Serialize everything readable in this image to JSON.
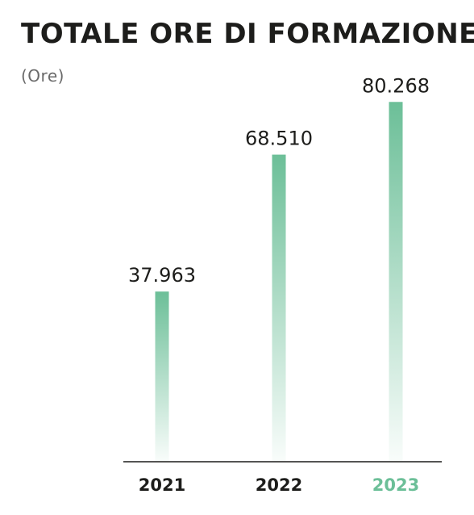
{
  "header": {
    "title": "TOTALE ORE DI FORMAZIONE",
    "unit": "(Ore)"
  },
  "colors": {
    "bar": "#6cbf98",
    "highlight": "#6cbf98",
    "text": "#1d1d1b",
    "axis": "#1d1d1b"
  },
  "chart_data": {
    "type": "bar",
    "title": "TOTALE ORE DI FORMAZIONE",
    "ylabel": "(Ore)",
    "xlabel": "",
    "categories": [
      "2021",
      "2022",
      "2023"
    ],
    "values": [
      37963,
      68510,
      80268
    ],
    "value_labels": [
      "37.963",
      "68.510",
      "80.268"
    ],
    "highlight_category": "2023",
    "ylim": [
      0,
      85000
    ],
    "grid": false,
    "legend": "none"
  }
}
